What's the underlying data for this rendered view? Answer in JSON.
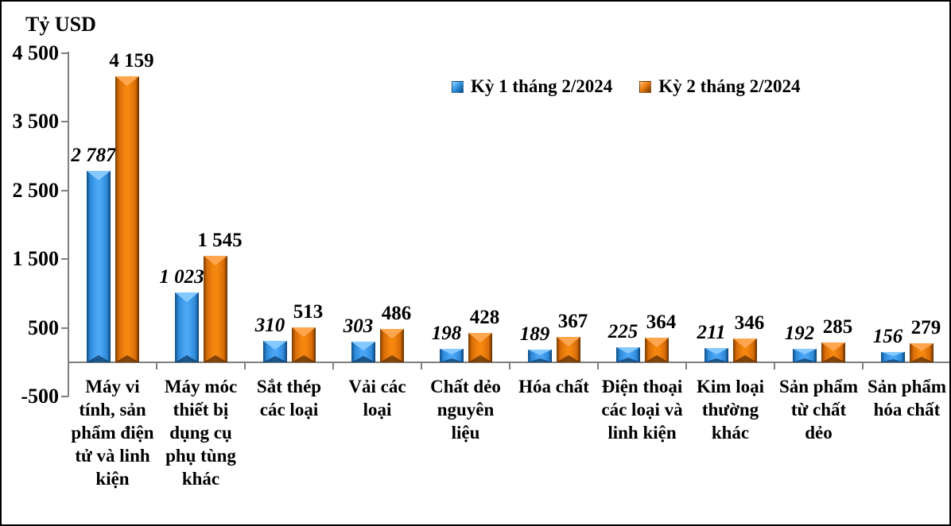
{
  "title": "Tỷ USD",
  "chart_data": {
    "type": "bar",
    "title": "Tỷ USD",
    "ylabel": "Tỷ USD",
    "categories": [
      "Máy vi tính, sản phẩm điện tử và linh kiện",
      "Máy móc thiết bị dụng cụ phụ tùng khác",
      "Sắt thép các loại",
      "Vải các loại",
      "Chất dẻo nguyên liệu",
      "Hóa chất",
      "Điện thoại các loại và linh kiện",
      "Kim loại thường khác",
      "Sản phẩm từ chất dẻo",
      "Sản phẩm hóa chất"
    ],
    "series": [
      {
        "name": "Kỳ 1 tháng 2/2024",
        "color": "#3399e8",
        "values": [
          2787,
          1023,
          310,
          303,
          198,
          189,
          225,
          211,
          192,
          156
        ]
      },
      {
        "name": "Kỳ 2 tháng 2/2024",
        "color": "#ef8010",
        "values": [
          4159,
          1545,
          513,
          486,
          428,
          367,
          364,
          346,
          285,
          279
        ]
      }
    ],
    "ylim": [
      -500,
      4500
    ],
    "yticks": [
      4500,
      3500,
      2500,
      1500,
      500,
      -500
    ],
    "grid": false,
    "legend_position": "top-center",
    "number_format": "space-thousands",
    "axis_color": "#7f7f7f"
  }
}
